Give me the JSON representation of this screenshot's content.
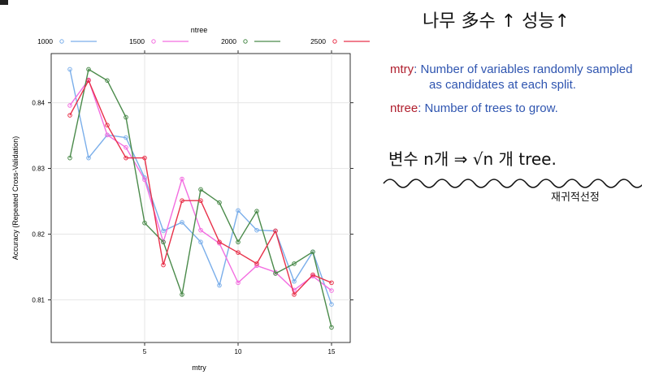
{
  "chart_data": {
    "type": "line",
    "legend_title": "ntree",
    "legend_position": "top",
    "xlabel": "mtry",
    "ylabel": "Accuracy (Repeated Cross-Validation)",
    "xlim": [
      0,
      16
    ],
    "ylim": [
      0.8035,
      0.8475
    ],
    "xticks": [
      5,
      10,
      15
    ],
    "yticks": [
      0.81,
      0.82,
      0.83,
      0.84
    ],
    "grid": true,
    "x": [
      1,
      2,
      3,
      4,
      5,
      6,
      7,
      8,
      9,
      10,
      11,
      12,
      13,
      14,
      15
    ],
    "series": [
      {
        "name": "1000",
        "color": "#7aaeea",
        "values": [
          0.8451,
          0.8316,
          0.8351,
          0.8347,
          0.8286,
          0.8205,
          0.8218,
          0.8188,
          0.8122,
          0.8236,
          0.8206,
          0.8205,
          0.8128,
          0.8173,
          0.8093
        ]
      },
      {
        "name": "1500",
        "color": "#f36de0",
        "values": [
          0.8396,
          0.8435,
          0.8351,
          0.8332,
          0.8283,
          0.8188,
          0.8284,
          0.8206,
          0.8186,
          0.8126,
          0.8152,
          0.8142,
          0.8115,
          0.8136,
          0.8114
        ]
      },
      {
        "name": "2000",
        "color": "#4a8a4a",
        "values": [
          0.8316,
          0.8451,
          0.8434,
          0.8378,
          0.8217,
          0.8188,
          0.8108,
          0.8268,
          0.8248,
          0.8188,
          0.8235,
          0.814,
          0.8155,
          0.8173,
          0.8058
        ]
      },
      {
        "name": "2500",
        "color": "#e8314a",
        "values": [
          0.8381,
          0.8434,
          0.8366,
          0.8316,
          0.8316,
          0.8153,
          0.8251,
          0.8251,
          0.8188,
          0.8172,
          0.8155,
          0.8205,
          0.8108,
          0.8138,
          0.8126
        ]
      }
    ]
  },
  "notes": {
    "mtry_term": "mtry",
    "mtry_desc_1": ": Number of variables randomly sampled",
    "mtry_desc_2": "as candidates at each split.",
    "ntree_term": "ntree",
    "ntree_desc": ": Number of trees to grow."
  },
  "handwriting": {
    "heading": "나무 多수 ↑ 성능↑",
    "rule": "변수 n개 ⇒ √n 개 tree.",
    "sign": "재귀적선정"
  }
}
